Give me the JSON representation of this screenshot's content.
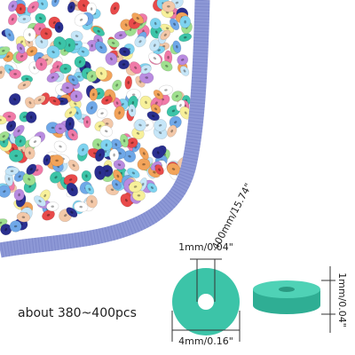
{
  "strand_length": "400mm/15.74\"",
  "hole_size": "1mm/0.04\"",
  "quantity": "about 380~400pcs",
  "diameter": "4mm/0.16\"",
  "thickness": "1mm/0.04\""
}
